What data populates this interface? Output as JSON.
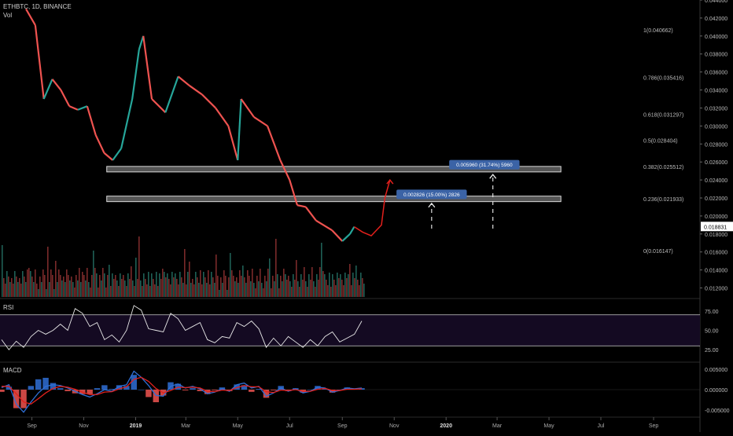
{
  "header": {
    "symbol_line": "ETHBTC, 1D, BINANCE",
    "volume_label": "Vol"
  },
  "panes": {
    "rsi_label": "RSI",
    "macd_label": "MACD"
  },
  "colors": {
    "up": "#26a69a",
    "down": "#ef5350",
    "line_red": "#e3201c",
    "line_blue": "#2f6fd6",
    "box": "#3b63a6",
    "rsi_fill": "#140a22"
  },
  "chart_data": [
    {
      "type": "line",
      "title": "ETHBTC, 1D, BINANCE",
      "x_ticks": [
        "Sep",
        "Nov",
        "2019",
        "Mar",
        "May",
        "Jul",
        "Sep",
        "Nov",
        "2020",
        "Mar",
        "May",
        "Jul",
        "Sep"
      ],
      "y_ticks": [
        "0.044000",
        "0.042000",
        "0.040000",
        "0.038000",
        "0.036000",
        "0.034000",
        "0.032000",
        "0.030000",
        "0.028000",
        "0.026000",
        "0.024000",
        "0.022000",
        "0.020000",
        "0.018000",
        "0.016000",
        "0.014000",
        "0.012000"
      ],
      "ylim": [
        0.011,
        0.044
      ],
      "current_price": "0.018831",
      "price_path": [
        [
          "2018-08-25",
          0.043
        ],
        [
          "2018-09-05",
          0.0412
        ],
        [
          "2018-09-15",
          0.033
        ],
        [
          "2018-09-25",
          0.0352
        ],
        [
          "2018-10-05",
          0.034
        ],
        [
          "2018-10-15",
          0.0322
        ],
        [
          "2018-10-25",
          0.0318
        ],
        [
          "2018-11-05",
          0.0322
        ],
        [
          "2018-11-15",
          0.029
        ],
        [
          "2018-11-25",
          0.027
        ],
        [
          "2018-12-05",
          0.0262
        ],
        [
          "2018-12-15",
          0.0275
        ],
        [
          "2018-12-28",
          0.033
        ],
        [
          "2019-01-05",
          0.0385
        ],
        [
          "2019-01-10",
          0.04
        ],
        [
          "2019-01-20",
          0.033
        ],
        [
          "2019-02-05",
          0.0315
        ],
        [
          "2019-02-20",
          0.0355
        ],
        [
          "2019-03-05",
          0.0345
        ],
        [
          "2019-03-20",
          0.0335
        ],
        [
          "2019-04-05",
          0.032
        ],
        [
          "2019-04-20",
          0.03
        ],
        [
          "2019-05-01",
          0.0262
        ],
        [
          "2019-05-05",
          0.033
        ],
        [
          "2019-05-20",
          0.031
        ],
        [
          "2019-06-05",
          0.03
        ],
        [
          "2019-06-20",
          0.0262
        ],
        [
          "2019-07-01",
          0.024
        ],
        [
          "2019-07-10",
          0.0212
        ],
        [
          "2019-07-20",
          0.021
        ],
        [
          "2019-08-01",
          0.0195
        ],
        [
          "2019-08-20",
          0.0184
        ],
        [
          "2019-09-01",
          0.0172
        ],
        [
          "2019-09-10",
          0.018
        ],
        [
          "2019-09-15",
          0.0188
        ]
      ],
      "projection_path": [
        [
          "2019-09-15",
          0.0188
        ],
        [
          "2019-09-25",
          0.0182
        ],
        [
          "2019-10-05",
          0.0178
        ],
        [
          "2019-10-10",
          0.0183
        ],
        [
          "2019-10-17",
          0.019
        ],
        [
          "2019-10-21",
          0.022
        ],
        [
          "2019-10-27",
          0.024
        ]
      ],
      "fib_levels": [
        {
          "label": "1(0.040662)",
          "value": 0.040662
        },
        {
          "label": "0.786(0.035416)",
          "value": 0.035416
        },
        {
          "label": "0.618(0.031297)",
          "value": 0.031297
        },
        {
          "label": "0.5(0.028404)",
          "value": 0.028404
        },
        {
          "label": "0.382(0.025512)",
          "value": 0.025512
        },
        {
          "label": "0.236(0.021933)",
          "value": 0.021933
        },
        {
          "label": "0(0.016147)",
          "value": 0.016147
        }
      ],
      "zones": [
        {
          "from": "2018-11-28",
          "to": "2020-05-15",
          "value": 0.0252
        },
        {
          "from": "2018-11-28",
          "to": "2020-05-15",
          "value": 0.0219
        }
      ],
      "measure_boxes": [
        {
          "text": "0.005960 (31.74%) 5960",
          "date": "2020-02-15",
          "value": 0.0257
        },
        {
          "text": "0.002826 (15.00%) 2826",
          "date": "2019-12-15",
          "value": 0.0224
        }
      ],
      "targets": [
        {
          "date": "2019-12-15",
          "from": 0.0186,
          "to": 0.0214
        },
        {
          "date": "2020-02-25",
          "from": 0.0186,
          "to": 0.0246
        }
      ]
    },
    {
      "type": "line",
      "title": "RSI",
      "yticks": [
        "75.00",
        "50.00",
        "25.00"
      ],
      "ylim": [
        10,
        90
      ],
      "bands": [
        70,
        30
      ],
      "values": [
        [
          0,
          38
        ],
        [
          1,
          25
        ],
        [
          2,
          36
        ],
        [
          3,
          28
        ],
        [
          4,
          42
        ],
        [
          5,
          50
        ],
        [
          6,
          45
        ],
        [
          7,
          50
        ],
        [
          8,
          58
        ],
        [
          9,
          50
        ],
        [
          10,
          78
        ],
        [
          11,
          72
        ],
        [
          12,
          55
        ],
        [
          13,
          60
        ],
        [
          14,
          38
        ],
        [
          15,
          44
        ],
        [
          16,
          35
        ],
        [
          17,
          50
        ],
        [
          18,
          82
        ],
        [
          19,
          76
        ],
        [
          20,
          52
        ],
        [
          21,
          50
        ],
        [
          22,
          48
        ],
        [
          23,
          72
        ],
        [
          24,
          65
        ],
        [
          25,
          50
        ],
        [
          26,
          55
        ],
        [
          27,
          60
        ],
        [
          28,
          38
        ],
        [
          29,
          34
        ],
        [
          30,
          42
        ],
        [
          31,
          40
        ],
        [
          32,
          60
        ],
        [
          33,
          55
        ],
        [
          34,
          62
        ],
        [
          35,
          52
        ],
        [
          36,
          28
        ],
        [
          37,
          40
        ],
        [
          38,
          30
        ],
        [
          39,
          42
        ],
        [
          40,
          35
        ],
        [
          41,
          28
        ],
        [
          42,
          38
        ],
        [
          43,
          30
        ],
        [
          44,
          42
        ],
        [
          45,
          48
        ],
        [
          46,
          35
        ],
        [
          47,
          40
        ],
        [
          48,
          45
        ],
        [
          49,
          62
        ]
      ]
    },
    {
      "type": "line",
      "title": "MACD",
      "yticks": [
        "0.005000",
        "0.000000",
        "-0.005000"
      ],
      "ylim": [
        -0.0065,
        0.0065
      ],
      "macd": [
        [
          0,
          0.0005
        ],
        [
          1,
          0.0012
        ],
        [
          2,
          -0.0035
        ],
        [
          3,
          -0.0055
        ],
        [
          4,
          -0.003
        ],
        [
          5,
          -0.0008
        ],
        [
          6,
          0.0008
        ],
        [
          7,
          0.0012
        ],
        [
          8,
          0.001
        ],
        [
          9,
          0.0004
        ],
        [
          10,
          -0.0004
        ],
        [
          11,
          -0.0012
        ],
        [
          12,
          -0.0018
        ],
        [
          13,
          -0.001
        ],
        [
          14,
          0.0
        ],
        [
          15,
          -0.0004
        ],
        [
          16,
          0.0008
        ],
        [
          17,
          0.0012
        ],
        [
          18,
          0.0045
        ],
        [
          19,
          0.003
        ],
        [
          20,
          0.001
        ],
        [
          21,
          -0.0014
        ],
        [
          22,
          -0.0016
        ],
        [
          23,
          0.0008
        ],
        [
          24,
          0.0014
        ],
        [
          25,
          0.0004
        ],
        [
          26,
          0.0008
        ],
        [
          27,
          0.0002
        ],
        [
          28,
          -0.001
        ],
        [
          29,
          -0.0006
        ],
        [
          30,
          0.0002
        ],
        [
          31,
          -0.0004
        ],
        [
          32,
          0.0012
        ],
        [
          33,
          0.0016
        ],
        [
          34,
          0.0004
        ],
        [
          35,
          0.0008
        ],
        [
          36,
          -0.0016
        ],
        [
          37,
          -0.0008
        ],
        [
          38,
          0.0004
        ],
        [
          39,
          -0.0004
        ],
        [
          40,
          0.0002
        ],
        [
          41,
          -0.0008
        ],
        [
          42,
          -0.0004
        ],
        [
          43,
          0.0006
        ],
        [
          44,
          0.0004
        ],
        [
          45,
          -0.0006
        ],
        [
          46,
          -0.0002
        ],
        [
          47,
          0.0004
        ],
        [
          48,
          0.0002
        ],
        [
          49,
          0.0004
        ]
      ],
      "signal": [
        [
          0,
          0.0008
        ],
        [
          1,
          0.0008
        ],
        [
          2,
          -0.001
        ],
        [
          3,
          -0.003
        ],
        [
          4,
          -0.0035
        ],
        [
          5,
          -0.0022
        ],
        [
          6,
          -0.0008
        ],
        [
          7,
          0.0003
        ],
        [
          8,
          0.0008
        ],
        [
          9,
          0.0006
        ],
        [
          10,
          0.0001
        ],
        [
          11,
          -0.0006
        ],
        [
          12,
          -0.0012
        ],
        [
          13,
          -0.0012
        ],
        [
          14,
          -0.0006
        ],
        [
          15,
          -0.0005
        ],
        [
          16,
          0.0002
        ],
        [
          17,
          0.0007
        ],
        [
          18,
          0.0025
        ],
        [
          19,
          0.003
        ],
        [
          20,
          0.002
        ],
        [
          21,
          0.0003
        ],
        [
          22,
          -0.0008
        ],
        [
          23,
          -0.0002
        ],
        [
          24,
          0.0006
        ],
        [
          25,
          0.0005
        ],
        [
          26,
          0.0006
        ],
        [
          27,
          0.0004
        ],
        [
          28,
          -0.0004
        ],
        [
          29,
          -0.0005
        ],
        [
          30,
          -0.0001
        ],
        [
          31,
          -0.0002
        ],
        [
          32,
          0.0005
        ],
        [
          33,
          0.001
        ],
        [
          34,
          0.0007
        ],
        [
          35,
          0.0007
        ],
        [
          36,
          -0.0005
        ],
        [
          37,
          -0.0007
        ],
        [
          38,
          -0.0001
        ],
        [
          39,
          -0.0002
        ],
        [
          40,
          0.0
        ],
        [
          41,
          -0.0004
        ],
        [
          42,
          -0.0004
        ],
        [
          43,
          0.0001
        ],
        [
          44,
          0.0003
        ],
        [
          45,
          -0.0002
        ],
        [
          46,
          -0.0002
        ],
        [
          47,
          0.0001
        ],
        [
          48,
          0.0001
        ],
        [
          49,
          0.0002
        ]
      ]
    }
  ]
}
